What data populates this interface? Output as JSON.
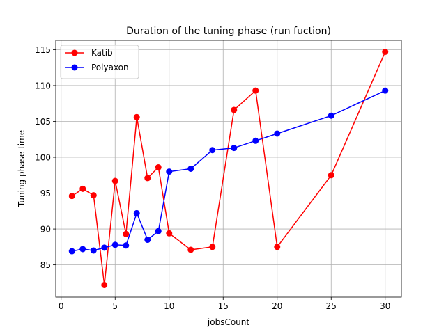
{
  "chart_data": {
    "type": "line",
    "title": "Duration of the tuning phase (run fuction)",
    "xlabel": "jobsCount",
    "ylabel": "Tuning phase time",
    "xlim": [
      -0.5,
      31.5
    ],
    "ylim": [
      80.5,
      116.3
    ],
    "xticks": [
      0,
      5,
      10,
      15,
      20,
      25,
      30
    ],
    "yticks": [
      85,
      90,
      95,
      100,
      105,
      110,
      115
    ],
    "grid": true,
    "legend_position": "upper-left",
    "series": [
      {
        "name": "Katib",
        "color": "#ff0000",
        "x": [
          1,
          2,
          3,
          4,
          5,
          6,
          7,
          8,
          9,
          10,
          12,
          14,
          16,
          18,
          20,
          25,
          30
        ],
        "y": [
          94.6,
          95.6,
          94.7,
          82.2,
          96.7,
          89.3,
          105.6,
          97.1,
          98.6,
          89.4,
          87.1,
          87.5,
          106.6,
          109.3,
          87.5,
          97.5,
          114.7
        ]
      },
      {
        "name": "Polyaxon",
        "color": "#0000ff",
        "x": [
          1,
          2,
          3,
          4,
          5,
          6,
          7,
          8,
          9,
          10,
          12,
          14,
          16,
          18,
          20,
          25,
          30
        ],
        "y": [
          86.9,
          87.2,
          87.0,
          87.4,
          87.8,
          87.7,
          92.2,
          88.5,
          89.7,
          98.0,
          98.4,
          101.0,
          101.3,
          102.3,
          103.3,
          105.8,
          109.3
        ]
      }
    ]
  }
}
